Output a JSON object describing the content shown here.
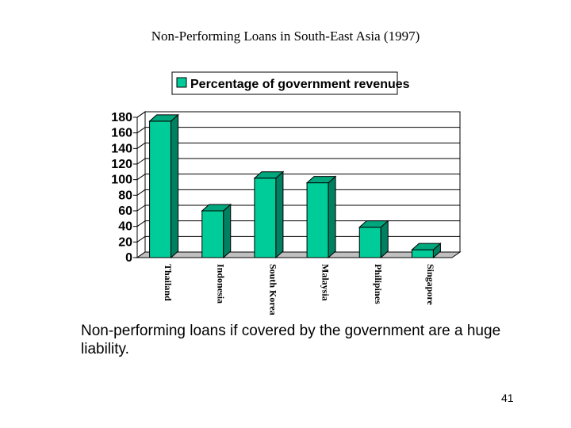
{
  "slide": {
    "title": "Non-Performing Loans in South-East Asia (1997)",
    "caption": "Non-performing loans if covered by the government are a huge liability.",
    "page_number": "41"
  },
  "colors": {
    "bar_front": "#00CC99",
    "bar_side": "#008060",
    "bar_top": "#00A67C",
    "floor": "#C0C0C0",
    "gridline": "#000000"
  },
  "chart_data": {
    "type": "bar",
    "title": "",
    "xlabel": "",
    "ylabel": "",
    "categories": [
      "Thailand",
      "Indonesia",
      "South Korea",
      "Malaysia",
      "Philipines",
      "Singapore"
    ],
    "series": [
      {
        "name": "Percentage of government revenues",
        "values": [
          175,
          60,
          102,
          96,
          39,
          10
        ]
      }
    ],
    "ylim": [
      0,
      180
    ],
    "yticks": [
      0,
      20,
      40,
      60,
      80,
      100,
      120,
      140,
      160,
      180
    ],
    "grid": true,
    "three_d": true,
    "legend_position": "top"
  }
}
